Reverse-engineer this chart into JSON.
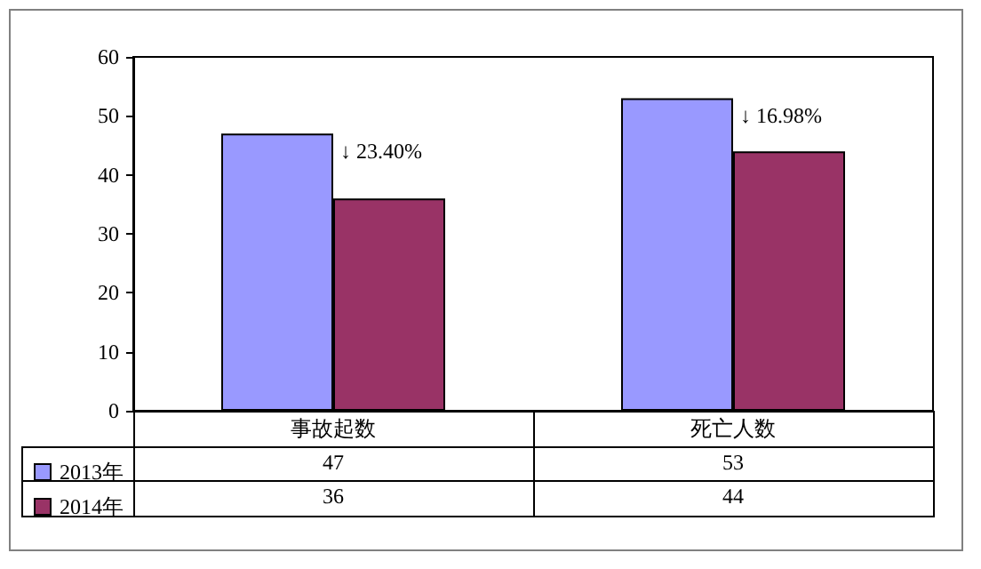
{
  "chart_data": {
    "type": "bar",
    "categories": [
      "事故起数",
      "死亡人数"
    ],
    "series": [
      {
        "name": "2013年",
        "color": "#9999ff",
        "values": [
          47,
          53
        ]
      },
      {
        "name": "2014年",
        "color": "#993366",
        "values": [
          36,
          44
        ]
      }
    ],
    "ylim": [
      0,
      60
    ],
    "yticks": [
      0,
      10,
      20,
      30,
      40,
      50,
      60
    ],
    "grid": false,
    "legend": "bottom left",
    "data_labels": true,
    "annotations": [
      {
        "text": "↓ 23.40%",
        "x": "事故起数",
        "y": 47
      },
      {
        "text": "↓ 16.98%",
        "x": "死亡人数",
        "y": 53
      }
    ]
  }
}
